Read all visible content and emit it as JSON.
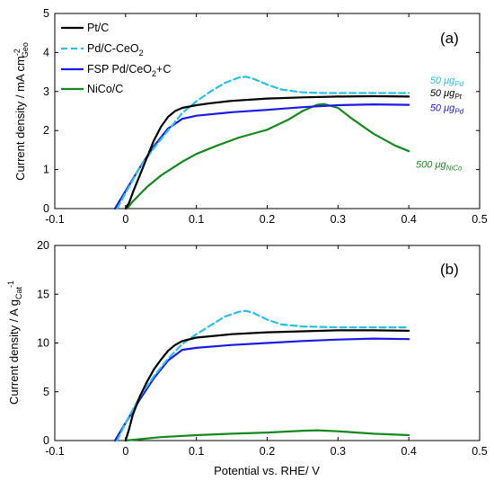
{
  "colors": {
    "pt_c": "#000000",
    "pd_c_ceo2": "#26c0ea",
    "fsp_pd_ceo2_c": "#1a1ae6",
    "nico_c": "#16891e"
  },
  "chart_data": [
    {
      "type": "line",
      "panel_label": "(a)",
      "xlim": [
        -0.1,
        0.5
      ],
      "ylim": [
        0,
        5
      ],
      "x_ticks": [
        "-0.1",
        "0",
        "0.1",
        "0.2",
        "0.3",
        "0.4",
        "0.5"
      ],
      "y_ticks": [
        "0",
        "1",
        "2",
        "3",
        "4",
        "5"
      ],
      "ylabel": {
        "main": "Current density / mA cm",
        "sup": "-2",
        "sub": "Geo"
      },
      "legend": {
        "placement": "top-left",
        "entries": [
          {
            "text": "Pt/C",
            "sub": "",
            "after": ""
          },
          {
            "text": "Pd/C-CeO",
            "sub": "2",
            "after": ""
          },
          {
            "text": "FSP Pd/CeO",
            "sub": "2",
            "after": "+C"
          },
          {
            "text": "NiCo/C",
            "sub": "",
            "after": ""
          }
        ]
      },
      "annotations": [
        {
          "text": "50 μg",
          "sub": "Pd",
          "series": "pd_c_ceo2",
          "x": 0.43,
          "y": 3.2
        },
        {
          "text": "50 μg",
          "sub": "Pt",
          "series": "pt_c",
          "x": 0.43,
          "y": 2.88
        },
        {
          "text": "50 μg",
          "sub": "Pd",
          "series": "fsp_pd_ceo2_c",
          "x": 0.43,
          "y": 2.5
        },
        {
          "text": "500 μg",
          "sub": "NiCo",
          "series": "nico_c",
          "x": 0.41,
          "y": 1.05
        }
      ],
      "series": [
        {
          "key": "pt_c",
          "name": "Pt/C",
          "dash": false,
          "x": [
            0.0,
            0.005,
            0.01,
            0.02,
            0.03,
            0.04,
            0.05,
            0.06,
            0.07,
            0.08,
            0.1,
            0.12,
            0.15,
            0.2,
            0.25,
            0.3,
            0.35,
            0.4
          ],
          "y": [
            0.0,
            0.15,
            0.4,
            0.85,
            1.3,
            1.75,
            2.1,
            2.35,
            2.5,
            2.58,
            2.65,
            2.7,
            2.76,
            2.82,
            2.85,
            2.87,
            2.88,
            2.87
          ]
        },
        {
          "key": "pd_c_ceo2",
          "name": "Pd/C-CeO2",
          "dash": true,
          "x": [
            -0.012,
            0.0,
            0.02,
            0.04,
            0.06,
            0.08,
            0.1,
            0.12,
            0.14,
            0.16,
            0.17,
            0.18,
            0.2,
            0.22,
            0.25,
            0.28,
            0.3,
            0.35,
            0.4
          ],
          "y": [
            0.0,
            0.4,
            1.05,
            1.55,
            2.0,
            2.45,
            2.75,
            3.0,
            3.22,
            3.36,
            3.38,
            3.33,
            3.18,
            3.05,
            2.98,
            2.96,
            2.96,
            2.96,
            2.96
          ]
        },
        {
          "key": "fsp_pd_ceo2_c",
          "name": "FSP Pd/CeO2+C",
          "dash": false,
          "x": [
            -0.015,
            0.0,
            0.02,
            0.04,
            0.06,
            0.08,
            0.1,
            0.15,
            0.2,
            0.25,
            0.3,
            0.35,
            0.4
          ],
          "y": [
            0.0,
            0.45,
            1.05,
            1.6,
            2.05,
            2.3,
            2.38,
            2.47,
            2.53,
            2.6,
            2.65,
            2.67,
            2.66
          ]
        },
        {
          "key": "nico_c",
          "name": "NiCo/C",
          "dash": false,
          "x": [
            0.002,
            0.01,
            0.03,
            0.05,
            0.08,
            0.1,
            0.13,
            0.16,
            0.2,
            0.23,
            0.25,
            0.27,
            0.28,
            0.3,
            0.32,
            0.35,
            0.38,
            0.4
          ],
          "y": [
            0.0,
            0.18,
            0.55,
            0.85,
            1.2,
            1.4,
            1.62,
            1.82,
            2.02,
            2.28,
            2.5,
            2.66,
            2.68,
            2.58,
            2.3,
            1.92,
            1.62,
            1.47
          ]
        }
      ]
    },
    {
      "type": "line",
      "panel_label": "(b)",
      "xlim": [
        -0.1,
        0.5
      ],
      "ylim": [
        0,
        20
      ],
      "x_ticks": [
        "-0.1",
        "0",
        "0.1",
        "0.2",
        "0.3",
        "0.4",
        "0.5"
      ],
      "y_ticks": [
        "0",
        "5",
        "10",
        "15",
        "20"
      ],
      "xlabel": "Potential vs. RHE/ V",
      "ylabel": {
        "main": "Current density / A g",
        "sub": "Cat",
        "sup": "-1"
      },
      "series": [
        {
          "key": "pt_c",
          "name": "Pt/C",
          "dash": false,
          "x": [
            0.0,
            0.005,
            0.01,
            0.02,
            0.03,
            0.04,
            0.05,
            0.06,
            0.07,
            0.08,
            0.1,
            0.15,
            0.2,
            0.25,
            0.3,
            0.35,
            0.4
          ],
          "y": [
            0.0,
            1.2,
            2.6,
            4.5,
            6.0,
            7.3,
            8.3,
            9.2,
            9.8,
            10.2,
            10.55,
            10.9,
            11.1,
            11.2,
            11.3,
            11.3,
            11.25
          ]
        },
        {
          "key": "pd_c_ceo2",
          "name": "Pd/C-CeO2",
          "dash": true,
          "x": [
            -0.012,
            0.0,
            0.02,
            0.04,
            0.06,
            0.08,
            0.1,
            0.12,
            0.14,
            0.16,
            0.17,
            0.18,
            0.2,
            0.22,
            0.25,
            0.3,
            0.35,
            0.4
          ],
          "y": [
            0.0,
            1.8,
            4.5,
            6.6,
            8.4,
            9.9,
            10.9,
            11.8,
            12.7,
            13.2,
            13.3,
            13.1,
            12.4,
            11.9,
            11.7,
            11.6,
            11.6,
            11.6
          ]
        },
        {
          "key": "fsp_pd_ceo2_c",
          "name": "FSP Pd/CeO2+C",
          "dash": false,
          "x": [
            -0.015,
            0.0,
            0.02,
            0.04,
            0.06,
            0.08,
            0.1,
            0.15,
            0.2,
            0.25,
            0.3,
            0.35,
            0.4
          ],
          "y": [
            0.0,
            1.8,
            4.2,
            6.4,
            8.2,
            9.3,
            9.5,
            9.8,
            10.0,
            10.2,
            10.35,
            10.45,
            10.4
          ]
        },
        {
          "key": "nico_c",
          "name": "NiCo/C",
          "dash": false,
          "x": [
            0.0,
            0.05,
            0.1,
            0.15,
            0.2,
            0.25,
            0.27,
            0.3,
            0.35,
            0.4
          ],
          "y": [
            0.0,
            0.35,
            0.55,
            0.7,
            0.82,
            1.0,
            1.05,
            0.95,
            0.7,
            0.55
          ]
        }
      ]
    }
  ]
}
